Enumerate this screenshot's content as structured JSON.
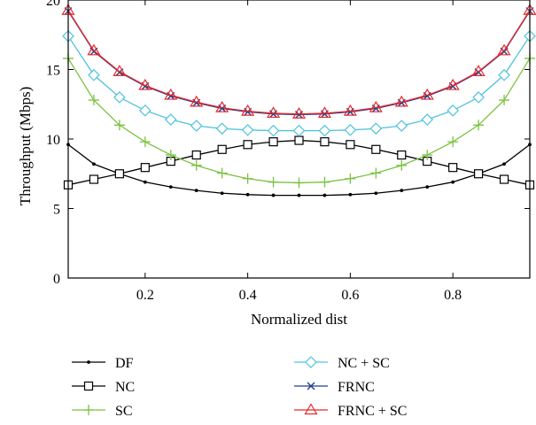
{
  "chart_data": {
    "type": "line",
    "xlabel": "Normalized dist",
    "ylabel": "Throughput (Mbps)",
    "xlim": [
      0.05,
      0.95
    ],
    "ylim": [
      0,
      20
    ],
    "xticks": [
      0.2,
      0.4,
      0.6,
      0.8
    ],
    "xtick_labels": [
      "0.2",
      "0.4",
      "0.6",
      "0.8"
    ],
    "yticks": [
      0,
      5,
      10,
      15,
      20
    ],
    "ytick_labels": [
      "0",
      "5",
      "10",
      "15",
      "20"
    ],
    "grid": false,
    "legend_position": "bottom",
    "x": [
      0.05,
      0.1,
      0.15,
      0.2,
      0.25,
      0.3,
      0.35,
      0.4,
      0.45,
      0.5,
      0.55,
      0.6,
      0.65,
      0.7,
      0.75,
      0.8,
      0.85,
      0.9,
      0.95
    ],
    "series": [
      {
        "name": "DF",
        "color": "#000000",
        "marker": "dot",
        "values": [
          9.6,
          8.2,
          7.5,
          6.9,
          6.55,
          6.3,
          6.1,
          6.0,
          5.95,
          5.95,
          5.95,
          6.0,
          6.1,
          6.3,
          6.55,
          6.9,
          7.5,
          8.2,
          9.6
        ]
      },
      {
        "name": "NC",
        "color": "#000000",
        "marker": "square",
        "values": [
          6.7,
          7.1,
          7.5,
          7.95,
          8.4,
          8.85,
          9.25,
          9.6,
          9.8,
          9.9,
          9.8,
          9.6,
          9.25,
          8.85,
          8.4,
          7.95,
          7.5,
          7.1,
          6.7
        ]
      },
      {
        "name": "SC",
        "color": "#7cc242",
        "marker": "plus",
        "values": [
          15.8,
          12.8,
          11.0,
          9.8,
          8.85,
          8.1,
          7.55,
          7.15,
          6.9,
          6.85,
          6.9,
          7.15,
          7.55,
          8.1,
          8.85,
          9.8,
          11.0,
          12.8,
          15.8
        ]
      },
      {
        "name": "NC + SC",
        "color": "#4fc3dc",
        "marker": "diamond",
        "values": [
          17.4,
          14.6,
          13.0,
          12.05,
          11.4,
          10.95,
          10.75,
          10.65,
          10.6,
          10.6,
          10.6,
          10.65,
          10.75,
          10.95,
          11.4,
          12.05,
          13.0,
          14.6,
          17.4
        ]
      },
      {
        "name": "FRNC",
        "color": "#1f3f8c",
        "marker": "x",
        "values": [
          19.2,
          16.3,
          14.8,
          13.8,
          13.1,
          12.6,
          12.2,
          11.95,
          11.8,
          11.75,
          11.8,
          11.95,
          12.2,
          12.6,
          13.1,
          13.8,
          14.8,
          16.3,
          19.2
        ]
      },
      {
        "name": "FRNC + SC",
        "color": "#e8282c",
        "marker": "triangle",
        "values": [
          19.25,
          16.35,
          14.85,
          13.85,
          13.15,
          12.65,
          12.25,
          12.0,
          11.85,
          11.8,
          11.85,
          12.0,
          12.25,
          12.65,
          13.15,
          13.85,
          14.85,
          16.35,
          19.25
        ]
      }
    ]
  }
}
